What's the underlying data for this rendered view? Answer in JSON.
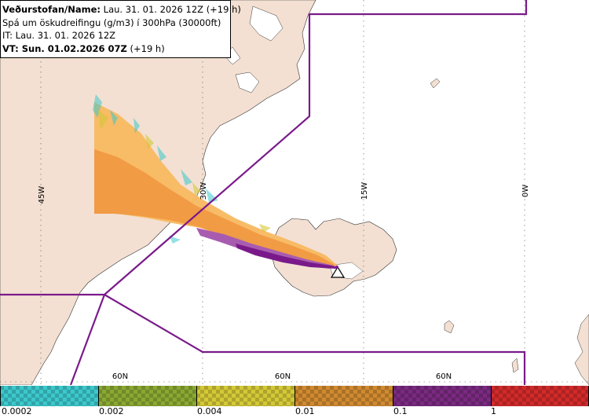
{
  "info": {
    "line1_label": "Veðurstofan/Name:",
    "line1_value": "Lau. 31. 01. 2026 12Z (+19 h)",
    "line2": "Spá um öskudreifingu (g/m3) í 300hPa (30000ft)",
    "line3": "IT: Lau. 31. 01. 2026 12Z",
    "line4_label": "VT: Sun. 01.02.2026 07Z",
    "line4_value": "(+19 h)"
  },
  "graticule": {
    "lon_labels": [
      "45W",
      "30W",
      "15W",
      "0W"
    ],
    "lat_labels": [
      "60N",
      "60N",
      "60N"
    ]
  },
  "legend": {
    "ticks": [
      "0.0002",
      "0.002",
      "0.004",
      "0.01",
      "0.1",
      "1"
    ],
    "colors": [
      "#3cc8cc",
      "#8aa832",
      "#d4c836",
      "#d08a30",
      "#7a2a80",
      "#d22a2a"
    ]
  },
  "colors": {
    "land": "#f3e0d2",
    "sea": "#ffffff",
    "boundary": "#7a1a8a",
    "ash_low": "#f8b860",
    "ash_mid": "#f09840",
    "ash_high": "#a85cb0",
    "ash_core": "#7a1a8a"
  },
  "icons": {
    "volcano": "warning-triangle-icon"
  }
}
